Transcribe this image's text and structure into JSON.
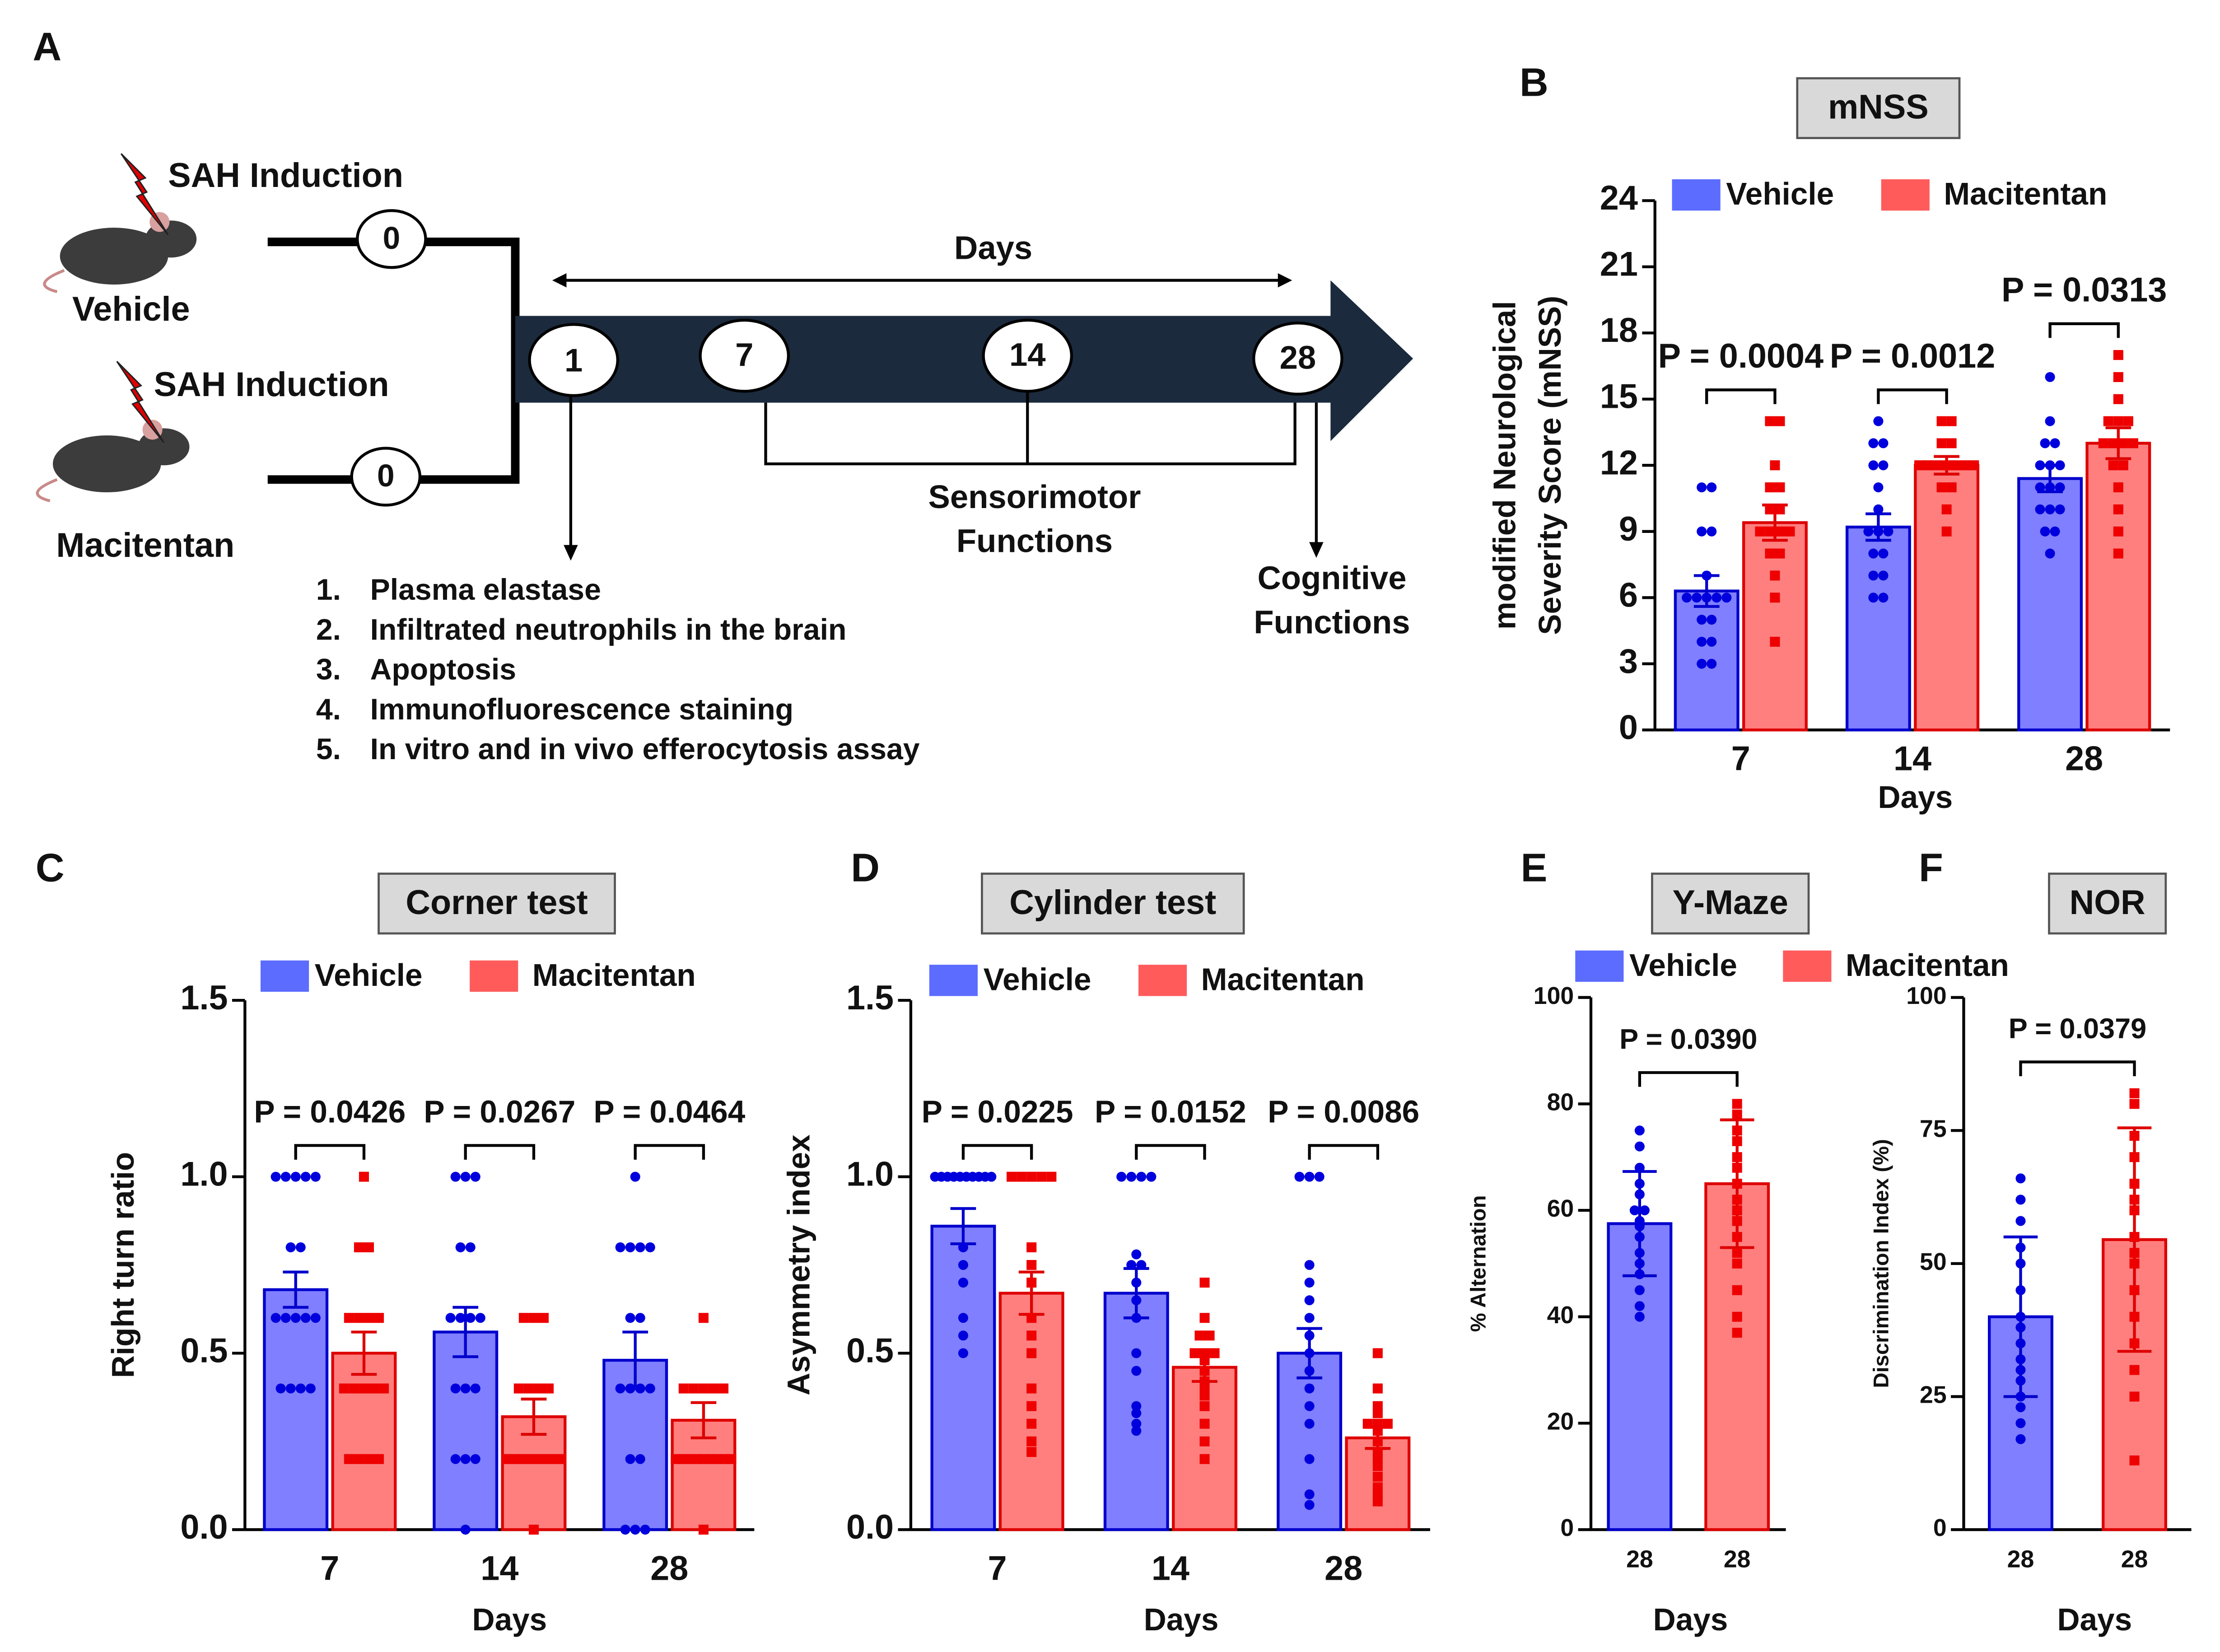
{
  "diagram": {
    "label": "A",
    "groups": [
      {
        "induction": "SAH Induction",
        "start": "0",
        "name": "Vehicle"
      },
      {
        "induction": "SAH Induction",
        "start": "0",
        "name": "Macitentan"
      }
    ],
    "axis_label": "Days",
    "timepoints": [
      "1",
      "7",
      "14",
      "28"
    ],
    "sensorimotor": [
      "Sensorimotor",
      "Functions"
    ],
    "cognitive": [
      "Cognitive",
      "Functions"
    ],
    "assays": [
      {
        "number": "1.",
        "text": "Plasma elastase"
      },
      {
        "number": "2.",
        "text": "Infiltrated neutrophils in the brain"
      },
      {
        "number": "3.",
        "text": "Apoptosis"
      },
      {
        "number": "4.",
        "text": "Immunofluorescence staining"
      },
      {
        "number": "5.",
        "text": "In vitro and in vivo efferocytosis assay"
      }
    ]
  },
  "chart_data": [
    {
      "type": "bar",
      "panel": "B",
      "title": "mNSS",
      "legend": true,
      "ylabel": [
        "modified Neurological",
        "Severity Score (mNSS)"
      ],
      "xlabel": "Days",
      "categories": [
        "7",
        "14",
        "28"
      ],
      "ylim": [
        0,
        24
      ],
      "yticks": [
        0,
        3,
        6,
        9,
        12,
        15,
        18,
        21,
        24
      ],
      "pvalues": [
        "P = 0.0004",
        "P = 0.0012",
        "P = 0.0313"
      ],
      "series": [
        {
          "name": "Vehicle",
          "color": "#7f7fff",
          "edge_color": "#0000cc",
          "point_color": "#0000dd",
          "marker": "circle",
          "values": [
            6.3,
            9.2,
            11.4
          ],
          "errors": [
            0.7,
            0.6,
            0.6
          ],
          "points": [
            [
              11,
              11,
              9,
              9,
              7,
              6,
              6,
              6,
              6,
              6,
              5,
              5,
              4,
              4,
              3,
              3
            ],
            [
              14,
              13,
              13,
              12,
              12,
              11,
              10,
              9,
              9,
              9,
              8,
              8,
              7,
              7,
              6,
              6
            ],
            [
              16,
              14,
              13,
              13,
              12,
              12,
              12,
              11,
              11,
              11,
              10,
              10,
              10,
              9,
              9,
              8
            ]
          ]
        },
        {
          "name": "Macitentan",
          "color": "#ff7f7f",
          "edge_color": "#dd0000",
          "point_color": "#ee0000",
          "marker": "square",
          "values": [
            9.4,
            12.0,
            13.0
          ],
          "errors": [
            0.8,
            0.4,
            0.7
          ],
          "points": [
            [
              14,
              14,
              12,
              11,
              11,
              10,
              10,
              9,
              9,
              9,
              9,
              8,
              8,
              7,
              6,
              4
            ],
            [
              14,
              14,
              13,
              13,
              12,
              12,
              12,
              12,
              12,
              12,
              12,
              12,
              11,
              11,
              10,
              9
            ],
            [
              17,
              16,
              15,
              14,
              14,
              14,
              13,
              13,
              13,
              13,
              12,
              12,
              11,
              10,
              9,
              8
            ]
          ]
        }
      ]
    },
    {
      "type": "bar",
      "panel": "C",
      "title": "Corner test",
      "legend": true,
      "ylabel": [
        "Right turn ratio"
      ],
      "xlabel": "Days",
      "categories": [
        "7",
        "14",
        "28"
      ],
      "ylim": [
        0,
        1.5
      ],
      "yticks": [
        {
          "value": 0,
          "label": "0.0"
        },
        0.5,
        {
          "value": 1,
          "label": "1.0"
        },
        1.5
      ],
      "pvalues": [
        "P = 0.0426",
        "P = 0.0267",
        "P = 0.0464"
      ],
      "series": [
        {
          "name": "Vehicle",
          "color": "#7f7fff",
          "edge_color": "#0000cc",
          "point_color": "#0000dd",
          "marker": "circle",
          "values": [
            0.68,
            0.56,
            0.48
          ],
          "errors": [
            0.05,
            0.07,
            0.08
          ],
          "points": [
            [
              1,
              1,
              1,
              1,
              1,
              0.8,
              0.8,
              0.6,
              0.6,
              0.6,
              0.6,
              0.6,
              0.4,
              0.4,
              0.4,
              0.4
            ],
            [
              1,
              1,
              1,
              0.8,
              0.8,
              0.6,
              0.6,
              0.6,
              0.6,
              0.4,
              0.4,
              0.4,
              0.2,
              0.2,
              0.2,
              0
            ],
            [
              1,
              0.8,
              0.8,
              0.8,
              0.8,
              0.6,
              0.6,
              0.4,
              0.4,
              0.4,
              0.4,
              0.2,
              0.2,
              0,
              0,
              0
            ]
          ]
        },
        {
          "name": "Macitentan",
          "color": "#ff7f7f",
          "edge_color": "#dd0000",
          "point_color": "#ee0000",
          "marker": "square",
          "values": [
            0.5,
            0.32,
            0.31
          ],
          "errors": [
            0.06,
            0.05,
            0.05
          ],
          "points": [
            [
              1,
              0.8,
              0.8,
              0.6,
              0.6,
              0.6,
              0.6,
              0.4,
              0.4,
              0.4,
              0.4,
              0.4,
              0.2,
              0.2,
              0.2,
              0.2
            ],
            [
              0.6,
              0.6,
              0.6,
              0.4,
              0.4,
              0.4,
              0.4,
              0.2,
              0.2,
              0.2,
              0.2,
              0.2,
              0.2,
              0.2,
              0.2,
              0
            ],
            [
              0.6,
              0.4,
              0.4,
              0.4,
              0.4,
              0.4,
              0.2,
              0.2,
              0.2,
              0.2,
              0.2,
              0.2,
              0.2,
              0.2,
              0.2,
              0
            ]
          ]
        }
      ]
    },
    {
      "type": "bar",
      "panel": "D",
      "title": "Cylinder test",
      "legend": true,
      "ylabel": [
        "Asymmetry index"
      ],
      "xlabel": "Days",
      "categories": [
        "7",
        "14",
        "28"
      ],
      "ylim": [
        0,
        1.5
      ],
      "yticks": [
        {
          "value": 0,
          "label": "0.0"
        },
        0.5,
        {
          "value": 1,
          "label": "1.0"
        },
        1.5
      ],
      "pvalues": [
        "P = 0.0225",
        "P = 0.0152",
        "P = 0.0086"
      ],
      "series": [
        {
          "name": "Vehicle",
          "color": "#7f7fff",
          "edge_color": "#0000cc",
          "point_color": "#0000dd",
          "marker": "circle",
          "values": [
            0.86,
            0.67,
            0.5
          ],
          "errors": [
            0.05,
            0.07,
            0.07
          ],
          "points": [
            [
              1,
              1,
              1,
              1,
              1,
              1,
              1,
              1,
              1,
              1,
              0.8,
              0.75,
              0.7,
              0.6,
              0.55,
              0.5
            ],
            [
              1,
              1,
              1,
              1,
              0.78,
              0.75,
              0.75,
              0.7,
              0.65,
              0.6,
              0.5,
              0.45,
              0.35,
              0.33,
              0.3,
              0.28
            ],
            [
              1,
              1,
              1,
              0.75,
              0.7,
              0.65,
              0.6,
              0.55,
              0.5,
              0.45,
              0.4,
              0.35,
              0.3,
              0.2,
              0.1,
              0.07
            ]
          ]
        },
        {
          "name": "Macitentan",
          "color": "#ff7f7f",
          "edge_color": "#dd0000",
          "point_color": "#ee0000",
          "marker": "square",
          "values": [
            0.67,
            0.46,
            0.26
          ],
          "errors": [
            0.06,
            0.04,
            0.03
          ],
          "points": [
            [
              1,
              1,
              1,
              1,
              1,
              0.8,
              0.75,
              0.7,
              0.6,
              0.55,
              0.5,
              0.4,
              0.35,
              0.3,
              0.25,
              0.22
            ],
            [
              0.7,
              0.6,
              0.55,
              0.55,
              0.5,
              0.5,
              0.48,
              0.45,
              0.42,
              0.4,
              0.38,
              0.35,
              0.3,
              0.25,
              0.2,
              0.5
            ],
            [
              0.5,
              0.4,
              0.35,
              0.33,
              0.3,
              0.3,
              0.28,
              0.25,
              0.22,
              0.2,
              0.18,
              0.15,
              0.12,
              0.1,
              0.08,
              0.3
            ]
          ]
        }
      ]
    },
    {
      "type": "bar",
      "panel": "E",
      "title": "Y-Maze",
      "legend": true,
      "ylabel": [
        "% Alternation"
      ],
      "xlabel": "Days",
      "categories": [
        "28",
        "28"
      ],
      "ylim": [
        0,
        100
      ],
      "yticks": [
        0,
        20,
        40,
        60,
        80,
        100
      ],
      "pvalue": "P = 0.0390",
      "series": [
        {
          "name": "Vehicle",
          "color": "#7f7fff",
          "edge_color": "#0000cc",
          "point_color": "#0000dd",
          "marker": "circle",
          "values": [
            57.5,
            null
          ],
          "errors": [
            9.8,
            null
          ],
          "points": [
            [
              75,
              72,
              68,
              65,
              63,
              60,
              60,
              58,
              57,
              55,
              52,
              50,
              48,
              45,
              42,
              40
            ],
            null
          ]
        },
        {
          "name": "Macitentan",
          "color": "#ff7f7f",
          "edge_color": "#dd0000",
          "point_color": "#ee0000",
          "marker": "square",
          "values": [
            null,
            65
          ],
          "errors": [
            null,
            12
          ],
          "points": [
            null,
            [
              80,
              78,
              75,
              73,
              70,
              68,
              65,
              62,
              60,
              58,
              55,
              52,
              50,
              45,
              40,
              37
            ]
          ]
        }
      ]
    },
    {
      "type": "bar",
      "panel": "F",
      "title": "NOR",
      "legend": false,
      "ylabel": [
        "Discrimination Index (%)"
      ],
      "xlabel": "Days",
      "categories": [
        "28",
        "28"
      ],
      "ylim": [
        0,
        100
      ],
      "yticks": [
        0,
        25,
        50,
        75,
        100
      ],
      "pvalue": "P = 0.0379",
      "series": [
        {
          "name": "Vehicle",
          "color": "#7f7fff",
          "edge_color": "#0000cc",
          "point_color": "#0000dd",
          "marker": "circle",
          "values": [
            40,
            null
          ],
          "errors": [
            15,
            null
          ],
          "points": [
            [
              66,
              62,
              58,
              53,
              50,
              45,
              40,
              38,
              35,
              32,
              30,
              28,
              25,
              23,
              20,
              17
            ],
            null
          ]
        },
        {
          "name": "Macitentan",
          "color": "#ff7f7f",
          "edge_color": "#dd0000",
          "point_color": "#ee0000",
          "marker": "square",
          "values": [
            null,
            54.5
          ],
          "errors": [
            null,
            21
          ],
          "points": [
            null,
            [
              82,
              80,
              74,
              70,
              65,
              62,
              60,
              55,
              52,
              50,
              45,
              40,
              35,
              30,
              25,
              13
            ]
          ]
        }
      ]
    }
  ]
}
